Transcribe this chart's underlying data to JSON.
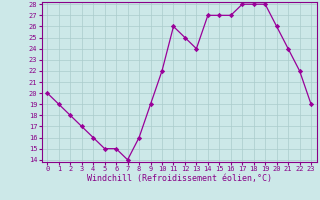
{
  "hours": [
    0,
    1,
    2,
    3,
    4,
    5,
    6,
    7,
    8,
    9,
    10,
    11,
    12,
    13,
    14,
    15,
    16,
    17,
    18,
    19,
    20,
    21,
    22,
    23
  ],
  "values": [
    20,
    19,
    18,
    17,
    16,
    15,
    15,
    14,
    16,
    19,
    22,
    26,
    25,
    24,
    27,
    27,
    27,
    28,
    28,
    28,
    26,
    24,
    22,
    19
  ],
  "line_color": "#990099",
  "marker": "D",
  "marker_size": 2.2,
  "bg_color": "#cce8e8",
  "grid_color": "#aacccc",
  "xlabel": "Windchill (Refroidissement éolien,°C)",
  "ylim": [
    14,
    28
  ],
  "xlim": [
    -0.5,
    23.5
  ],
  "yticks": [
    14,
    15,
    16,
    17,
    18,
    19,
    20,
    21,
    22,
    23,
    24,
    25,
    26,
    27,
    28
  ],
  "xticks": [
    0,
    1,
    2,
    3,
    4,
    5,
    6,
    7,
    8,
    9,
    10,
    11,
    12,
    13,
    14,
    15,
    16,
    17,
    18,
    19,
    20,
    21,
    22,
    23
  ],
  "tick_color": "#880088",
  "tick_fontsize": 5.0,
  "xlabel_fontsize": 6.0,
  "spine_color": "#880088",
  "linewidth": 0.9
}
